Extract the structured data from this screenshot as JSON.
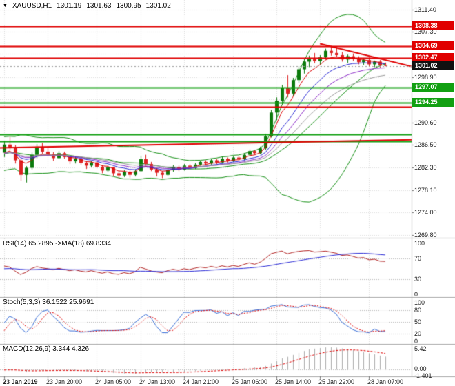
{
  "header": {
    "icon_glyph": "▼",
    "symbol": "XAUUSD,H1",
    "open": "1301.19",
    "high": "1301.63",
    "low": "1300.95",
    "close": "1301.02"
  },
  "panes": {
    "rsi": {
      "label": "RSI(14) 65.2895 ->MA(18) 69.8334",
      "levels": [
        {
          "v": 100,
          "t": "100"
        },
        {
          "v": 70,
          "t": "70"
        },
        {
          "v": 30,
          "t": "30"
        },
        {
          "v": 0,
          "t": "0"
        }
      ],
      "dotted": [
        70,
        30
      ]
    },
    "stoch": {
      "label": "Stoch(5,3,3) 36.1522 25.9691",
      "levels": [
        {
          "v": 100,
          "t": "100"
        },
        {
          "v": 80,
          "t": "80"
        },
        {
          "v": 50,
          "t": "50"
        },
        {
          "v": 20,
          "t": "20"
        },
        {
          "v": 0,
          "t": "0"
        }
      ],
      "dotted": [
        80,
        50,
        20
      ]
    },
    "macd": {
      "label": "MACD(12,26,9) 3.344 4.326",
      "max_label": "5.42",
      "zero_label": "0.00",
      "min_label": "-1.401"
    }
  },
  "colors": {
    "background": "#FFFFFF",
    "grid": "#DCDCDC",
    "bull": "#0C7A0C",
    "bear": "#DD2222",
    "bands": "#149014",
    "rsi": "#B22222",
    "rsi_ma": "#2A2AD6",
    "stoch_k": "#3A6FD8",
    "stoch_d": "#E00000",
    "macd_hist": "#ABABAB",
    "macd_signal": "#E00000",
    "current_price_box": "#111111"
  },
  "chart_data": {
    "type": "candlestick",
    "symbol": "XAUUSD",
    "timeframe": "H1",
    "current_price": "1301.02",
    "price_axis": {
      "ticks": [
        "1311.40",
        "1307.30",
        "1298.90",
        "1290.60",
        "1286.50",
        "1282.30",
        "1278.10",
        "1274.00",
        "1269.80"
      ],
      "grid": [
        1311.4,
        1307.3,
        1303.2,
        1298.9,
        1294.8,
        1290.6,
        1286.5,
        1282.3,
        1278.1,
        1274.0,
        1269.8
      ]
    },
    "time_axis": {
      "labels": [
        {
          "i": 0,
          "t": "23 Jan 2019"
        },
        {
          "i": 8,
          "t": "23 Jan 20:00"
        },
        {
          "i": 17,
          "t": "24 Jan 05:00"
        },
        {
          "i": 25,
          "t": "24 Jan 13:00"
        },
        {
          "i": 33,
          "t": "24 Jan 21:00"
        },
        {
          "i": 42,
          "t": "25 Jan 06:00"
        },
        {
          "i": 50,
          "t": "25 Jan 14:00"
        },
        {
          "i": 58,
          "t": "25 Jan 22:00"
        },
        {
          "i": 67,
          "t": "28 Jan 07:00"
        }
      ]
    },
    "candles": [
      [
        1285.0,
        1287.2,
        1284.2,
        1286.5
      ],
      [
        1286.5,
        1287.9,
        1285.6,
        1286.0
      ],
      [
        1286.0,
        1286.4,
        1283.0,
        1283.6
      ],
      [
        1283.6,
        1284.0,
        1279.8,
        1280.9
      ],
      [
        1280.9,
        1282.5,
        1279.5,
        1282.2
      ],
      [
        1282.2,
        1285.0,
        1281.9,
        1284.6
      ],
      [
        1284.6,
        1286.6,
        1284.0,
        1286.1
      ],
      [
        1286.1,
        1286.8,
        1284.8,
        1285.2
      ],
      [
        1285.2,
        1285.9,
        1284.3,
        1284.7
      ],
      [
        1284.7,
        1285.1,
        1283.5,
        1284.0
      ],
      [
        1284.0,
        1285.3,
        1283.8,
        1284.9
      ],
      [
        1284.9,
        1285.2,
        1283.9,
        1284.2
      ],
      [
        1284.2,
        1284.5,
        1282.9,
        1283.4
      ],
      [
        1283.4,
        1284.3,
        1283.0,
        1283.9
      ],
      [
        1283.9,
        1284.1,
        1282.8,
        1283.1
      ],
      [
        1283.1,
        1283.4,
        1282.0,
        1282.6
      ],
      [
        1282.6,
        1283.5,
        1282.3,
        1283.2
      ],
      [
        1283.2,
        1283.4,
        1282.1,
        1282.4
      ],
      [
        1282.4,
        1282.7,
        1281.2,
        1281.7
      ],
      [
        1281.7,
        1282.6,
        1281.4,
        1282.3
      ],
      [
        1282.3,
        1282.4,
        1280.7,
        1281.2
      ],
      [
        1281.2,
        1281.7,
        1280.2,
        1280.8
      ],
      [
        1280.8,
        1281.8,
        1280.5,
        1281.5
      ],
      [
        1281.5,
        1281.7,
        1280.4,
        1280.9
      ],
      [
        1280.9,
        1281.9,
        1280.6,
        1281.6
      ],
      [
        1281.6,
        1284.4,
        1281.4,
        1283.8
      ],
      [
        1283.8,
        1284.6,
        1282.6,
        1282.9
      ],
      [
        1282.9,
        1283.3,
        1281.6,
        1281.9
      ],
      [
        1281.9,
        1282.2,
        1280.6,
        1281.3
      ],
      [
        1281.3,
        1281.6,
        1280.3,
        1280.9
      ],
      [
        1280.9,
        1282.0,
        1280.7,
        1281.8
      ],
      [
        1281.8,
        1282.7,
        1281.5,
        1282.4
      ],
      [
        1282.4,
        1282.6,
        1281.6,
        1281.9
      ],
      [
        1281.9,
        1282.9,
        1281.7,
        1282.6
      ],
      [
        1282.6,
        1282.9,
        1281.9,
        1282.2
      ],
      [
        1282.2,
        1283.1,
        1282.0,
        1282.8
      ],
      [
        1282.8,
        1283.5,
        1282.6,
        1283.3
      ],
      [
        1283.3,
        1283.6,
        1282.7,
        1283.0
      ],
      [
        1283.0,
        1283.9,
        1282.8,
        1283.6
      ],
      [
        1283.6,
        1283.8,
        1282.9,
        1283.2
      ],
      [
        1283.2,
        1284.2,
        1283.0,
        1283.9
      ],
      [
        1283.9,
        1284.1,
        1283.2,
        1283.5
      ],
      [
        1283.5,
        1284.3,
        1283.3,
        1284.1
      ],
      [
        1284.1,
        1284.4,
        1283.5,
        1283.8
      ],
      [
        1283.8,
        1284.9,
        1283.6,
        1284.6
      ],
      [
        1284.6,
        1285.6,
        1284.4,
        1285.3
      ],
      [
        1285.3,
        1285.5,
        1284.6,
        1284.9
      ],
      [
        1284.9,
        1286.1,
        1284.7,
        1285.8
      ],
      [
        1285.8,
        1288.5,
        1285.5,
        1288.0
      ],
      [
        1288.0,
        1292.9,
        1287.8,
        1292.4
      ],
      [
        1292.4,
        1295.2,
        1291.0,
        1294.6
      ],
      [
        1294.6,
        1297.5,
        1293.8,
        1297.0
      ],
      [
        1297.0,
        1299.3,
        1295.2,
        1295.9
      ],
      [
        1295.9,
        1298.8,
        1295.5,
        1298.4
      ],
      [
        1298.4,
        1300.9,
        1297.9,
        1300.4
      ],
      [
        1300.4,
        1302.3,
        1299.6,
        1301.8
      ],
      [
        1301.8,
        1302.9,
        1300.8,
        1302.5
      ],
      [
        1302.5,
        1303.4,
        1301.5,
        1301.9
      ],
      [
        1301.9,
        1303.0,
        1301.2,
        1302.6
      ],
      [
        1302.6,
        1304.2,
        1302.2,
        1303.8
      ],
      [
        1303.8,
        1304.69,
        1302.9,
        1303.4
      ],
      [
        1303.4,
        1304.5,
        1302.6,
        1303.0
      ],
      [
        1303.0,
        1303.6,
        1301.8,
        1302.2
      ],
      [
        1302.2,
        1303.1,
        1301.6,
        1302.8
      ],
      [
        1302.8,
        1303.3,
        1301.9,
        1302.3
      ],
      [
        1302.3,
        1302.8,
        1301.3,
        1301.7
      ],
      [
        1301.7,
        1302.5,
        1301.2,
        1302.1
      ],
      [
        1302.1,
        1302.6,
        1300.9,
        1301.3
      ],
      [
        1301.3,
        1302.0,
        1300.8,
        1301.8
      ],
      [
        1301.8,
        1302.1,
        1300.7,
        1301.1
      ],
      [
        1301.19,
        1301.63,
        1300.95,
        1301.02
      ]
    ],
    "indicators": {
      "bollinger": {
        "period": 20,
        "deviation": 2
      },
      "mas": [
        {
          "period": 5,
          "color": "#DC0000"
        },
        {
          "period": 10,
          "color": "#2A2AD6"
        },
        {
          "period": 15,
          "color": "#8C2AC8"
        },
        {
          "period": 21,
          "color": "#9A9A9A"
        }
      ],
      "rsi": {
        "period": 14,
        "ma_period": 18
      },
      "stochastic": {
        "k": 5,
        "d": 3,
        "slowing": 3
      },
      "macd": {
        "fast": 12,
        "slow": 26,
        "signal": 9
      }
    },
    "levels": [
      {
        "price": 1308.38,
        "label": "1308.38",
        "color": "#E00000",
        "boxed": true
      },
      {
        "price": 1304.69,
        "label": "1304.69",
        "color": "#E00000",
        "boxed": true
      },
      {
        "price": 1302.47,
        "label": "1302.47",
        "color": "#E00000",
        "boxed": true
      },
      {
        "price": 1297.07,
        "label": "1297.07",
        "color": "#12A012",
        "boxed": true
      },
      {
        "price": 1294.25,
        "label": "1294.25",
        "color": "#12A012",
        "boxed": true
      },
      {
        "price": 1293.4,
        "label": "1293.40",
        "color": "#E00000",
        "boxed": false
      },
      {
        "price": 1288.35,
        "label": "1288.35",
        "color": "#12A012",
        "boxed": false
      },
      {
        "price": 1287.15,
        "label": "1287.15",
        "color": "#12A012",
        "boxed": false
      }
    ],
    "trendlines": [
      {
        "from": {
          "i": 58,
          "p": 1305.1
        },
        "to": {
          "i": 76,
          "p": 1300.6
        },
        "color": "#E00000",
        "width": 2
      },
      {
        "from": {
          "i": -1,
          "p": 1285.9
        },
        "to": {
          "i": 76,
          "p": 1287.4
        },
        "color": "#E00000",
        "width": 2
      }
    ]
  }
}
